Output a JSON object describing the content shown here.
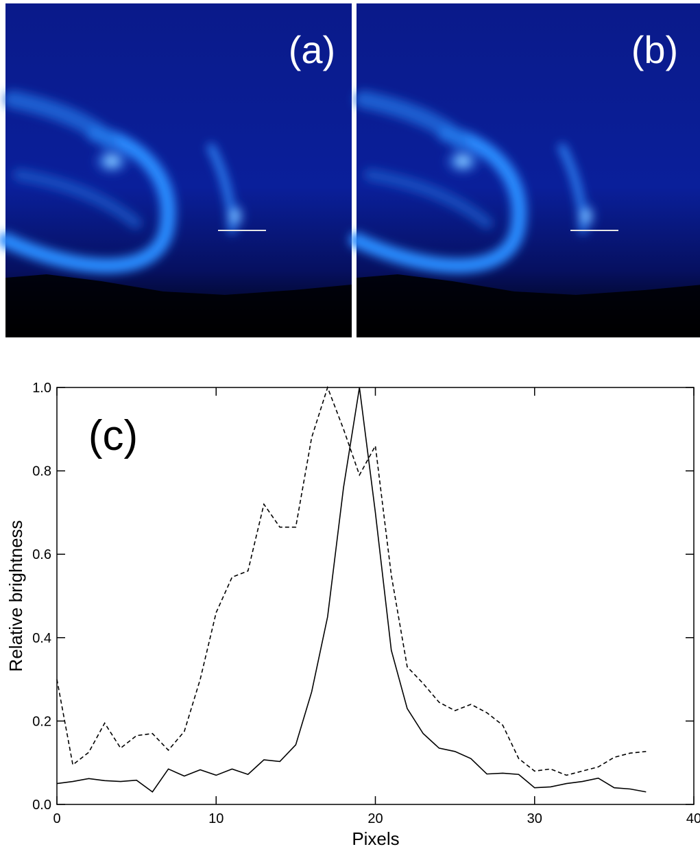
{
  "images": {
    "labels": [
      "(a)",
      "(b)"
    ]
  },
  "chart_data": {
    "type": "line",
    "annotation": "(c)",
    "x_label": "Pixels",
    "y_label": "Relative brightness",
    "x": [
      0,
      1,
      2,
      3,
      4,
      5,
      6,
      7,
      8,
      9,
      10,
      11,
      12,
      13,
      14,
      15,
      16,
      17,
      18,
      19,
      20,
      21,
      22,
      23,
      24,
      25,
      26,
      27,
      28,
      29,
      30,
      31,
      32,
      33,
      34,
      35,
      36,
      37
    ],
    "series": [
      {
        "color": "#000000",
        "dash": "solid",
        "values": [
          0.05,
          0.055,
          0.062,
          0.057,
          0.055,
          0.058,
          0.03,
          0.085,
          0.068,
          0.083,
          0.07,
          0.085,
          0.072,
          0.107,
          0.103,
          0.143,
          0.27,
          0.45,
          0.76,
          1.0,
          0.7,
          0.37,
          0.23,
          0.17,
          0.135,
          0.127,
          0.11,
          0.073,
          0.075,
          0.072,
          0.04,
          0.042,
          0.05,
          0.055,
          0.063,
          0.04,
          0.037,
          0.03
        ]
      },
      {
        "color": "#000000",
        "dash": "dashed",
        "values": [
          0.3,
          0.095,
          0.125,
          0.195,
          0.135,
          0.165,
          0.17,
          0.13,
          0.175,
          0.3,
          0.46,
          0.545,
          0.56,
          0.72,
          0.665,
          0.665,
          0.88,
          1.0,
          0.9,
          0.79,
          0.86,
          0.55,
          0.33,
          0.29,
          0.245,
          0.225,
          0.24,
          0.22,
          0.19,
          0.11,
          0.08,
          0.085,
          0.07,
          0.08,
          0.09,
          0.113,
          0.123,
          0.127
        ]
      }
    ],
    "xlim": [
      0,
      40
    ],
    "xticks": [
      0,
      10,
      20,
      30,
      40
    ],
    "ylim": [
      0,
      1
    ],
    "yticks": [
      {
        "value": 0,
        "label": "0.0"
      },
      0.2,
      0.4,
      0.6,
      0.8,
      {
        "value": 1,
        "label": "1.0"
      }
    ]
  }
}
